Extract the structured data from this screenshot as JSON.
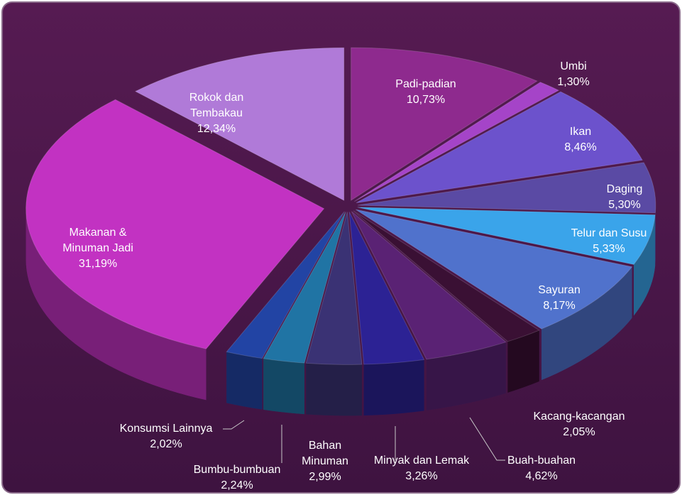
{
  "chart_data": {
    "type": "pie",
    "categories": [
      "Padi-padian",
      "Umbi",
      "Ikan",
      "Daging",
      "Telur dan Susu",
      "Sayuran",
      "Kacang-kacangan",
      "Buah-buahan",
      "Minyak dan Lemak",
      "Bahan Minuman",
      "Bumbu-bumbuan",
      "Konsumsi Lainnya",
      "Makanan & Minuman Jadi",
      "Rokok dan Tembakau"
    ],
    "values": [
      10.73,
      1.3,
      8.46,
      5.3,
      5.33,
      8.17,
      2.05,
      4.62,
      3.26,
      2.99,
      2.24,
      2.02,
      31.19,
      12.34
    ],
    "value_labels": [
      "10,73%",
      "1,30%",
      "8,46%",
      "5,30%",
      "5,33%",
      "8,17%",
      "2,05%",
      "4,62%",
      "3,26%",
      "2,99%",
      "2,24%",
      "2,02%",
      "31,19%",
      "12,34%"
    ],
    "colors": [
      "#8e2a8e",
      "#a544c8",
      "#6c52cc",
      "#5a4aa4",
      "#3aa4ea",
      "#5072cc",
      "#3a1034",
      "#5a2274",
      "#2c2294",
      "#3a3274",
      "#2074a4",
      "#2244a4",
      "#c232c2",
      "#b07ad8"
    ]
  }
}
